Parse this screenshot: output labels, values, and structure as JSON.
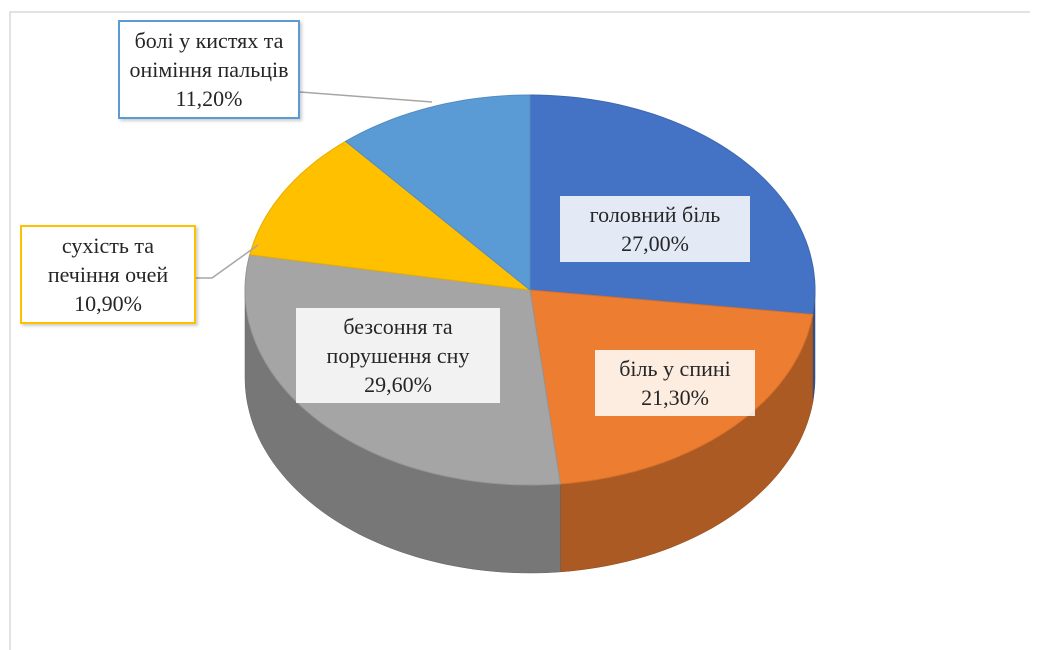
{
  "chart_data": {
    "type": "pie",
    "categories": [
      "головний біль",
      "біль у спині",
      "безсоння та порушення сну",
      "сухість та печіння очей",
      "болі у кистях та оніміння пальців"
    ],
    "values": [
      27.0,
      21.3,
      29.6,
      10.9,
      11.2
    ],
    "value_labels": [
      "27,00%",
      "21,30%",
      "29,60%",
      "10,90%",
      "11,20%"
    ],
    "colors": [
      "#4472c4",
      "#ed7d31",
      "#a5a5a5",
      "#ffc000",
      "#5b9bd5"
    ]
  }
}
